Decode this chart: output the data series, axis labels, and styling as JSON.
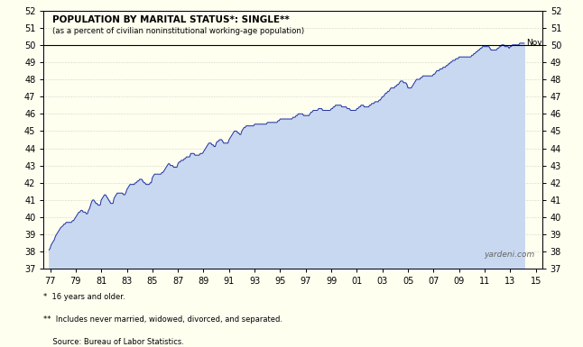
{
  "title_line1": "POPULATION BY MARITAL STATUS*: SINGLE**",
  "title_line2": "(as a percent of civilian noninstitutional working-age population)",
  "footnote1": "*  16 years and older.",
  "footnote2": "**  Includes never married, widowed, divorced, and separated.",
  "footnote3": "    Source: Bureau of Labor Statistics.",
  "watermark": "yardeni.com",
  "annotation": "Nov",
  "xlim_left": 1976.5,
  "xlim_right": 2015.5,
  "ylim_bottom": 37,
  "ylim_top": 52,
  "hline_y": 50,
  "background_color": "#FFFFF0",
  "fill_color": "#C8D8F0",
  "line_color": "#1F2F9F",
  "hline_color": "#000000",
  "x_tick_labels": [
    "77",
    "79",
    "81",
    "83",
    "85",
    "87",
    "89",
    "91",
    "93",
    "95",
    "97",
    "99",
    "01",
    "03",
    "05",
    "07",
    "09",
    "11",
    "13",
    "15"
  ],
  "x_tick_years": [
    1977,
    1979,
    1981,
    1983,
    1985,
    1987,
    1989,
    1991,
    1993,
    1995,
    1997,
    1999,
    2001,
    2003,
    2005,
    2007,
    2009,
    2011,
    2013,
    2015
  ],
  "y_ticks": [
    37,
    38,
    39,
    40,
    41,
    42,
    43,
    44,
    45,
    46,
    47,
    48,
    49,
    50,
    51,
    52
  ],
  "series_x": [
    1976.917,
    1977.0,
    1977.083,
    1977.167,
    1977.25,
    1977.333,
    1977.417,
    1977.5,
    1977.583,
    1977.667,
    1977.75,
    1977.833,
    1978.0,
    1978.083,
    1978.167,
    1978.25,
    1978.333,
    1978.417,
    1978.5,
    1978.583,
    1978.667,
    1978.75,
    1978.833,
    1978.917,
    1979.0,
    1979.083,
    1979.167,
    1979.25,
    1979.333,
    1979.417,
    1979.5,
    1979.583,
    1979.667,
    1979.75,
    1979.833,
    1979.917,
    1980.0,
    1980.083,
    1980.167,
    1980.25,
    1980.333,
    1980.417,
    1980.5,
    1980.583,
    1980.667,
    1980.75,
    1980.833,
    1980.917,
    1981.0,
    1981.083,
    1981.167,
    1981.25,
    1981.333,
    1981.417,
    1981.5,
    1981.583,
    1981.667,
    1981.75,
    1981.833,
    1981.917,
    1982.0,
    1982.083,
    1982.167,
    1982.25,
    1982.333,
    1982.417,
    1982.5,
    1982.583,
    1982.667,
    1982.75,
    1982.833,
    1982.917,
    1983.0,
    1983.083,
    1983.167,
    1983.25,
    1983.333,
    1983.417,
    1983.5,
    1983.583,
    1983.667,
    1983.75,
    1983.833,
    1983.917,
    1984.0,
    1984.083,
    1984.167,
    1984.25,
    1984.333,
    1984.417,
    1984.5,
    1984.583,
    1984.667,
    1984.75,
    1984.833,
    1984.917,
    1985.0,
    1985.083,
    1985.167,
    1985.25,
    1985.333,
    1985.417,
    1985.5,
    1985.583,
    1985.667,
    1985.75,
    1985.833,
    1985.917,
    1986.0,
    1986.083,
    1986.167,
    1986.25,
    1986.333,
    1986.417,
    1986.5,
    1986.583,
    1986.667,
    1986.75,
    1986.833,
    1986.917,
    1987.0,
    1987.083,
    1987.167,
    1987.25,
    1987.333,
    1987.417,
    1987.5,
    1987.583,
    1987.667,
    1987.75,
    1987.833,
    1987.917,
    1988.0,
    1988.083,
    1988.167,
    1988.25,
    1988.333,
    1988.417,
    1988.5,
    1988.583,
    1988.667,
    1988.75,
    1988.833,
    1988.917,
    1989.0,
    1989.083,
    1989.167,
    1989.25,
    1989.333,
    1989.417,
    1989.5,
    1989.583,
    1989.667,
    1989.75,
    1989.833,
    1989.917,
    1990.0,
    1990.083,
    1990.167,
    1990.25,
    1990.333,
    1990.417,
    1990.5,
    1990.583,
    1990.667,
    1990.75,
    1990.833,
    1990.917,
    1991.0,
    1991.083,
    1991.167,
    1991.25,
    1991.333,
    1991.417,
    1991.5,
    1991.583,
    1991.667,
    1991.75,
    1991.833,
    1991.917,
    1992.0,
    1992.083,
    1992.167,
    1992.25,
    1992.333,
    1992.417,
    1992.5,
    1992.583,
    1992.667,
    1992.75,
    1992.833,
    1992.917,
    1993.0,
    1993.083,
    1993.167,
    1993.25,
    1993.333,
    1993.417,
    1993.5,
    1993.583,
    1993.667,
    1993.75,
    1993.833,
    1993.917,
    1994.0,
    1994.083,
    1994.167,
    1994.25,
    1994.333,
    1994.417,
    1994.5,
    1994.583,
    1994.667,
    1994.75,
    1994.833,
    1994.917,
    1995.0,
    1995.083,
    1995.167,
    1995.25,
    1995.333,
    1995.417,
    1995.5,
    1995.583,
    1995.667,
    1995.75,
    1995.833,
    1995.917,
    1996.0,
    1996.083,
    1996.167,
    1996.25,
    1996.333,
    1996.417,
    1996.5,
    1996.583,
    1996.667,
    1996.75,
    1996.833,
    1996.917,
    1997.0,
    1997.083,
    1997.167,
    1997.25,
    1997.333,
    1997.417,
    1997.5,
    1997.583,
    1997.667,
    1997.75,
    1997.833,
    1997.917,
    1998.0,
    1998.083,
    1998.167,
    1998.25,
    1998.333,
    1998.417,
    1998.5,
    1998.583,
    1998.667,
    1998.75,
    1998.833,
    1998.917,
    1999.0,
    1999.083,
    1999.167,
    1999.25,
    1999.333,
    1999.417,
    1999.5,
    1999.583,
    1999.667,
    1999.75,
    1999.833,
    1999.917,
    2000.0,
    2000.083,
    2000.167,
    2000.25,
    2000.333,
    2000.417,
    2000.5,
    2000.583,
    2000.667,
    2000.75,
    2000.833,
    2000.917,
    2001.0,
    2001.083,
    2001.167,
    2001.25,
    2001.333,
    2001.417,
    2001.5,
    2001.583,
    2001.667,
    2001.75,
    2001.833,
    2001.917,
    2002.0,
    2002.083,
    2002.167,
    2002.25,
    2002.333,
    2002.417,
    2002.5,
    2002.583,
    2002.667,
    2002.75,
    2002.833,
    2002.917,
    2003.0,
    2003.083,
    2003.167,
    2003.25,
    2003.333,
    2003.417,
    2003.5,
    2003.583,
    2003.667,
    2003.75,
    2003.833,
    2003.917,
    2004.0,
    2004.083,
    2004.167,
    2004.25,
    2004.333,
    2004.417,
    2004.5,
    2004.583,
    2004.667,
    2004.75,
    2004.833,
    2004.917,
    2005.0,
    2005.083,
    2005.167,
    2005.25,
    2005.333,
    2005.417,
    2005.5,
    2005.583,
    2005.667,
    2005.75,
    2005.833,
    2005.917,
    2006.0,
    2006.083,
    2006.167,
    2006.25,
    2006.333,
    2006.417,
    2006.5,
    2006.583,
    2006.667,
    2006.75,
    2006.833,
    2006.917,
    2007.0,
    2007.083,
    2007.167,
    2007.25,
    2007.333,
    2007.417,
    2007.5,
    2007.583,
    2007.667,
    2007.75,
    2007.833,
    2007.917,
    2008.0,
    2008.083,
    2008.167,
    2008.25,
    2008.333,
    2008.417,
    2008.5,
    2008.583,
    2008.667,
    2008.75,
    2008.833,
    2008.917,
    2009.0,
    2009.083,
    2009.167,
    2009.25,
    2009.333,
    2009.417,
    2009.5,
    2009.583,
    2009.667,
    2009.75,
    2009.833,
    2009.917,
    2010.0,
    2010.083,
    2010.167,
    2010.25,
    2010.333,
    2010.417,
    2010.5,
    2010.583,
    2010.667,
    2010.75,
    2010.833,
    2010.917,
    2011.0,
    2011.083,
    2011.167,
    2011.25,
    2011.333,
    2011.417,
    2011.5,
    2011.583,
    2011.667,
    2011.75,
    2011.833,
    2011.917,
    2012.0,
    2012.083,
    2012.167,
    2012.25,
    2012.333,
    2012.417,
    2012.5,
    2012.583,
    2012.667,
    2012.75,
    2012.833,
    2012.917,
    2013.0,
    2013.083,
    2013.167,
    2013.25,
    2013.333,
    2013.417,
    2013.5,
    2013.583,
    2013.667,
    2013.75,
    2013.833,
    2013.917,
    2014.083
  ],
  "series_y": [
    38.1,
    38.2,
    38.4,
    38.5,
    38.6,
    38.7,
    38.9,
    39.0,
    39.1,
    39.2,
    39.3,
    39.4,
    39.5,
    39.6,
    39.6,
    39.7,
    39.7,
    39.7,
    39.7,
    39.7,
    39.7,
    39.8,
    39.8,
    39.9,
    40.0,
    40.1,
    40.2,
    40.3,
    40.3,
    40.4,
    40.4,
    40.3,
    40.3,
    40.3,
    40.2,
    40.2,
    40.4,
    40.5,
    40.7,
    40.9,
    41.0,
    41.0,
    40.9,
    40.8,
    40.8,
    40.7,
    40.7,
    40.7,
    41.0,
    41.1,
    41.2,
    41.3,
    41.3,
    41.2,
    41.1,
    41.0,
    40.9,
    40.8,
    40.8,
    40.8,
    41.1,
    41.2,
    41.3,
    41.4,
    41.4,
    41.4,
    41.4,
    41.4,
    41.4,
    41.3,
    41.3,
    41.4,
    41.6,
    41.7,
    41.8,
    41.9,
    41.9,
    41.9,
    41.9,
    41.9,
    42.0,
    42.0,
    42.1,
    42.1,
    42.2,
    42.2,
    42.2,
    42.1,
    42.0,
    42.0,
    41.9,
    41.9,
    41.9,
    41.9,
    42.0,
    42.0,
    42.3,
    42.4,
    42.5,
    42.5,
    42.5,
    42.5,
    42.5,
    42.5,
    42.5,
    42.6,
    42.6,
    42.7,
    42.8,
    42.9,
    43.0,
    43.1,
    43.1,
    43.0,
    43.0,
    43.0,
    42.9,
    42.9,
    42.9,
    42.9,
    43.1,
    43.2,
    43.2,
    43.3,
    43.3,
    43.3,
    43.4,
    43.4,
    43.5,
    43.5,
    43.5,
    43.5,
    43.7,
    43.7,
    43.7,
    43.7,
    43.6,
    43.6,
    43.6,
    43.6,
    43.6,
    43.7,
    43.7,
    43.7,
    43.8,
    43.9,
    44.0,
    44.1,
    44.2,
    44.3,
    44.3,
    44.3,
    44.2,
    44.2,
    44.1,
    44.1,
    44.3,
    44.4,
    44.4,
    44.5,
    44.5,
    44.5,
    44.4,
    44.3,
    44.3,
    44.3,
    44.3,
    44.3,
    44.5,
    44.6,
    44.7,
    44.8,
    44.9,
    45.0,
    45.0,
    45.0,
    44.9,
    44.9,
    44.8,
    44.8,
    45.0,
    45.1,
    45.2,
    45.2,
    45.3,
    45.3,
    45.3,
    45.3,
    45.3,
    45.3,
    45.3,
    45.3,
    45.4,
    45.4,
    45.4,
    45.4,
    45.4,
    45.4,
    45.4,
    45.4,
    45.4,
    45.4,
    45.4,
    45.4,
    45.5,
    45.5,
    45.5,
    45.5,
    45.5,
    45.5,
    45.5,
    45.5,
    45.5,
    45.5,
    45.6,
    45.6,
    45.7,
    45.7,
    45.7,
    45.7,
    45.7,
    45.7,
    45.7,
    45.7,
    45.7,
    45.7,
    45.7,
    45.7,
    45.8,
    45.8,
    45.8,
    45.9,
    45.9,
    46.0,
    46.0,
    46.0,
    46.0,
    46.0,
    45.9,
    45.9,
    45.9,
    45.9,
    45.9,
    45.9,
    46.0,
    46.1,
    46.1,
    46.2,
    46.2,
    46.2,
    46.2,
    46.2,
    46.3,
    46.3,
    46.3,
    46.3,
    46.2,
    46.2,
    46.2,
    46.2,
    46.2,
    46.2,
    46.2,
    46.2,
    46.3,
    46.3,
    46.4,
    46.4,
    46.5,
    46.5,
    46.5,
    46.5,
    46.5,
    46.5,
    46.4,
    46.4,
    46.4,
    46.4,
    46.4,
    46.3,
    46.3,
    46.3,
    46.2,
    46.2,
    46.2,
    46.2,
    46.2,
    46.2,
    46.3,
    46.3,
    46.4,
    46.4,
    46.5,
    46.5,
    46.5,
    46.4,
    46.4,
    46.4,
    46.4,
    46.4,
    46.5,
    46.5,
    46.6,
    46.6,
    46.6,
    46.7,
    46.7,
    46.7,
    46.7,
    46.8,
    46.8,
    46.9,
    47.0,
    47.0,
    47.1,
    47.2,
    47.2,
    47.3,
    47.3,
    47.4,
    47.5,
    47.5,
    47.5,
    47.5,
    47.6,
    47.6,
    47.7,
    47.7,
    47.8,
    47.9,
    47.9,
    47.9,
    47.8,
    47.8,
    47.8,
    47.7,
    47.5,
    47.5,
    47.5,
    47.5,
    47.6,
    47.7,
    47.8,
    47.9,
    48.0,
    48.0,
    48.0,
    48.0,
    48.1,
    48.1,
    48.2,
    48.2,
    48.2,
    48.2,
    48.2,
    48.2,
    48.2,
    48.2,
    48.2,
    48.2,
    48.3,
    48.3,
    48.4,
    48.5,
    48.5,
    48.5,
    48.6,
    48.6,
    48.6,
    48.7,
    48.7,
    48.7,
    48.8,
    48.8,
    48.9,
    48.9,
    49.0,
    49.0,
    49.1,
    49.1,
    49.1,
    49.2,
    49.2,
    49.2,
    49.3,
    49.3,
    49.3,
    49.3,
    49.3,
    49.3,
    49.3,
    49.3,
    49.3,
    49.3,
    49.3,
    49.3,
    49.4,
    49.4,
    49.5,
    49.5,
    49.6,
    49.6,
    49.7,
    49.7,
    49.8,
    49.8,
    49.9,
    49.9,
    49.9,
    49.9,
    49.9,
    49.9,
    49.9,
    49.8,
    49.7,
    49.7,
    49.7,
    49.7,
    49.7,
    49.7,
    49.8,
    49.8,
    49.9,
    49.9,
    50.0,
    50.0,
    50.0,
    49.9,
    49.9,
    49.9,
    49.9,
    49.8,
    49.9,
    49.9,
    50.0,
    50.0,
    50.0,
    50.0,
    50.0,
    50.0,
    50.0,
    50.1,
    50.1,
    50.1,
    50.1
  ]
}
